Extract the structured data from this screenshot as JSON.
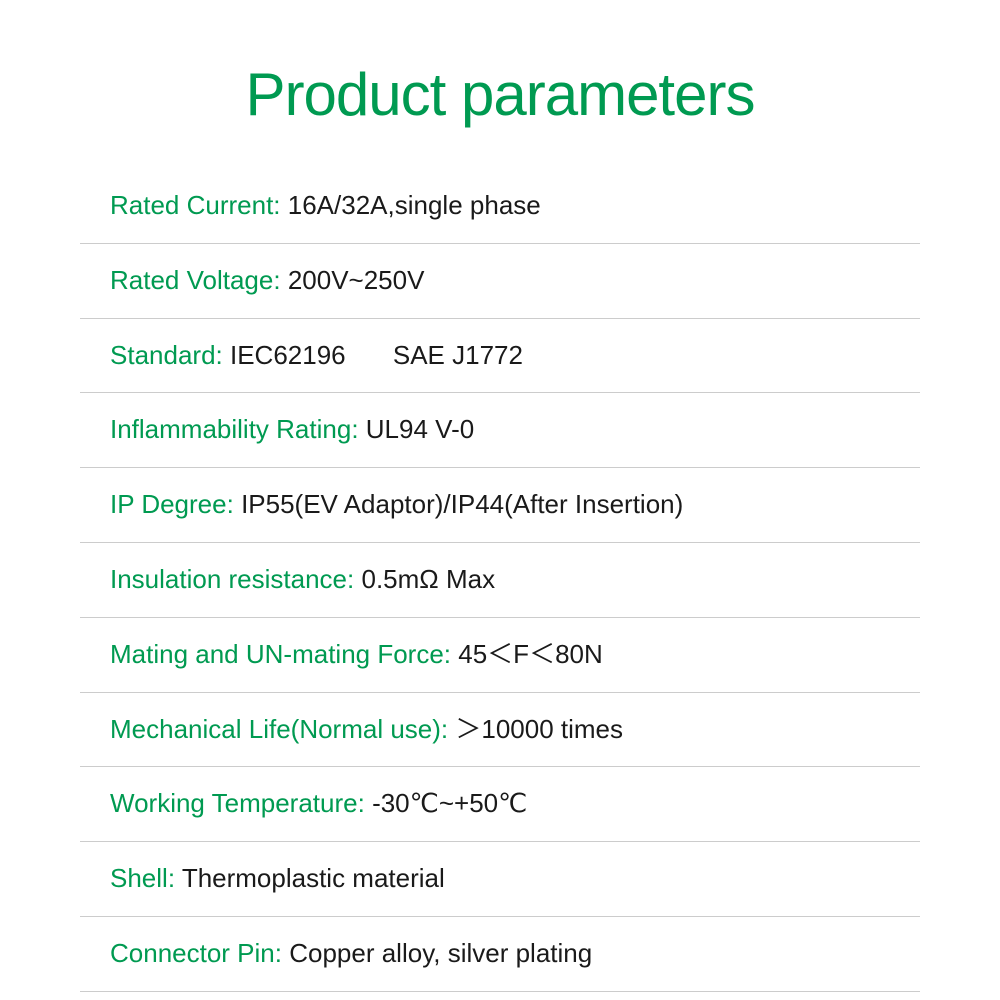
{
  "title": "Product parameters",
  "colors": {
    "accent": "#009a51",
    "text": "#1a1a1a",
    "divider": "#cccccc",
    "background": "#ffffff"
  },
  "typography": {
    "title_fontsize": 60,
    "row_fontsize": 26,
    "font_family": "Arial, Helvetica, sans-serif"
  },
  "parameters": [
    {
      "label": "Rated Current:",
      "value": "16A/32A,single phase"
    },
    {
      "label": "Rated Voltage:",
      "value": "200V~250V"
    },
    {
      "label": "Standard:",
      "value": "IEC62196",
      "value2": "SAE J1772"
    },
    {
      "label": "Inflammability Rating:",
      "value": "UL94 V-0"
    },
    {
      "label": "IP Degree:",
      "value": "IP55(EV Adaptor)/IP44(After Insertion)"
    },
    {
      "label": "Insulation resistance:",
      "value": "0.5mΩ Max"
    },
    {
      "label": "Mating and UN-mating Force:",
      "value": "45＜F＜80N"
    },
    {
      "label": "Mechanical Life(Normal use):",
      "value": "＞10000 times"
    },
    {
      "label": "Working Temperature:",
      "value": "-30℃~+50℃"
    },
    {
      "label": "Shell:",
      "value": "Thermoplastic material"
    },
    {
      "label": "Connector Pin:",
      "value": "Copper alloy, silver plating"
    }
  ]
}
